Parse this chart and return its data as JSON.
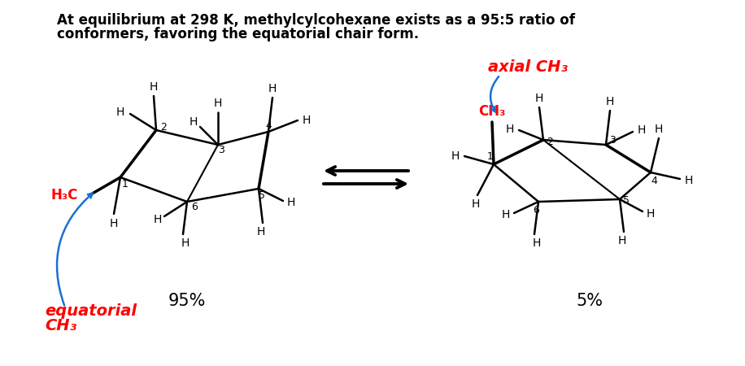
{
  "title_line1": "At equilibrium at 298 K, methylcylcohexane exists as a 95:5 ratio of",
  "title_line2": "conformers, favoring the equatorial chair form.",
  "bg_color": "#ffffff",
  "text_color": "#000000",
  "red_color": "#ff0000",
  "blue_color": "#1a6fd4",
  "pct_left": "95%",
  "pct_right": "5%",
  "label_equatorial_line1": "equatorial",
  "label_equatorial_line2": "CH₃",
  "label_axial": "axial CH₃",
  "label_ch3_left": "H₃C",
  "label_ch3_right": "CH₃"
}
